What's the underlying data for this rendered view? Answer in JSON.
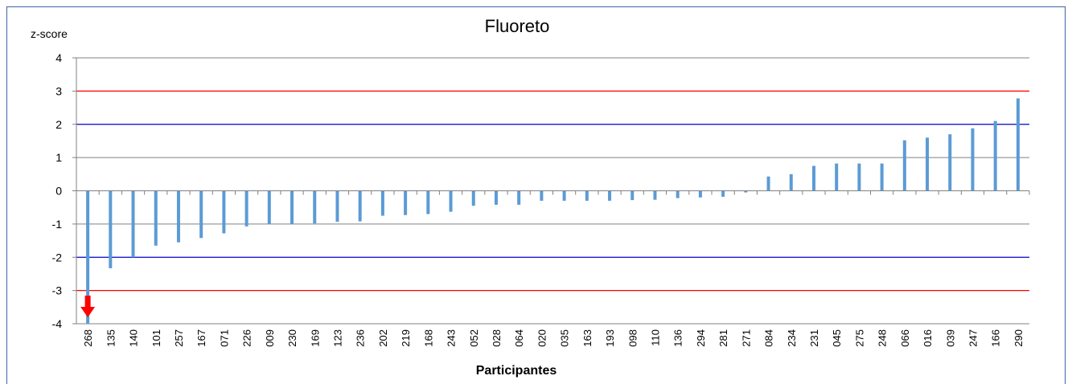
{
  "chart_data": {
    "type": "bar",
    "title": "Fluoreto",
    "ylabel": "z-score",
    "xlabel": "Participantes",
    "ylim": [
      -4,
      4
    ],
    "yticks": [
      "4",
      "3",
      "2",
      "1",
      "0",
      "-1",
      "-2",
      "-3",
      "-4"
    ],
    "grid": true,
    "categories": [
      "268",
      "135",
      "140",
      "101",
      "257",
      "167",
      "071",
      "226",
      "009",
      "230",
      "169",
      "123",
      "236",
      "202",
      "219",
      "168",
      "243",
      "052",
      "028",
      "064",
      "020",
      "035",
      "163",
      "193",
      "098",
      "110",
      "136",
      "294",
      "281",
      "271",
      "084",
      "234",
      "231",
      "045",
      "275",
      "248",
      "066",
      "016",
      "039",
      "247",
      "166",
      "290"
    ],
    "values": [
      -4.0,
      -2.33,
      -2.0,
      -1.65,
      -1.55,
      -1.42,
      -1.28,
      -1.07,
      -1.0,
      -1.0,
      -0.98,
      -0.93,
      -0.92,
      -0.75,
      -0.73,
      -0.7,
      -0.63,
      -0.45,
      -0.42,
      -0.42,
      -0.3,
      -0.3,
      -0.3,
      -0.3,
      -0.28,
      -0.27,
      -0.22,
      -0.2,
      -0.18,
      -0.05,
      0.43,
      0.5,
      0.75,
      0.82,
      0.82,
      0.82,
      1.52,
      1.6,
      1.7,
      1.88,
      2.1,
      2.78
    ],
    "reference_lines": [
      {
        "value": 3,
        "color": "#ff0000"
      },
      {
        "value": -3,
        "color": "#ff0000"
      },
      {
        "value": 2,
        "color": "#0000cc"
      },
      {
        "value": -2,
        "color": "#0000cc"
      }
    ],
    "annotation": {
      "category": "268",
      "kind": "red-down-arrow",
      "color": "#ff0000"
    },
    "colors": {
      "bar": "#5b9bd5",
      "grid": "#808080",
      "axis": "#808080",
      "frame": "#3a63a8"
    }
  }
}
